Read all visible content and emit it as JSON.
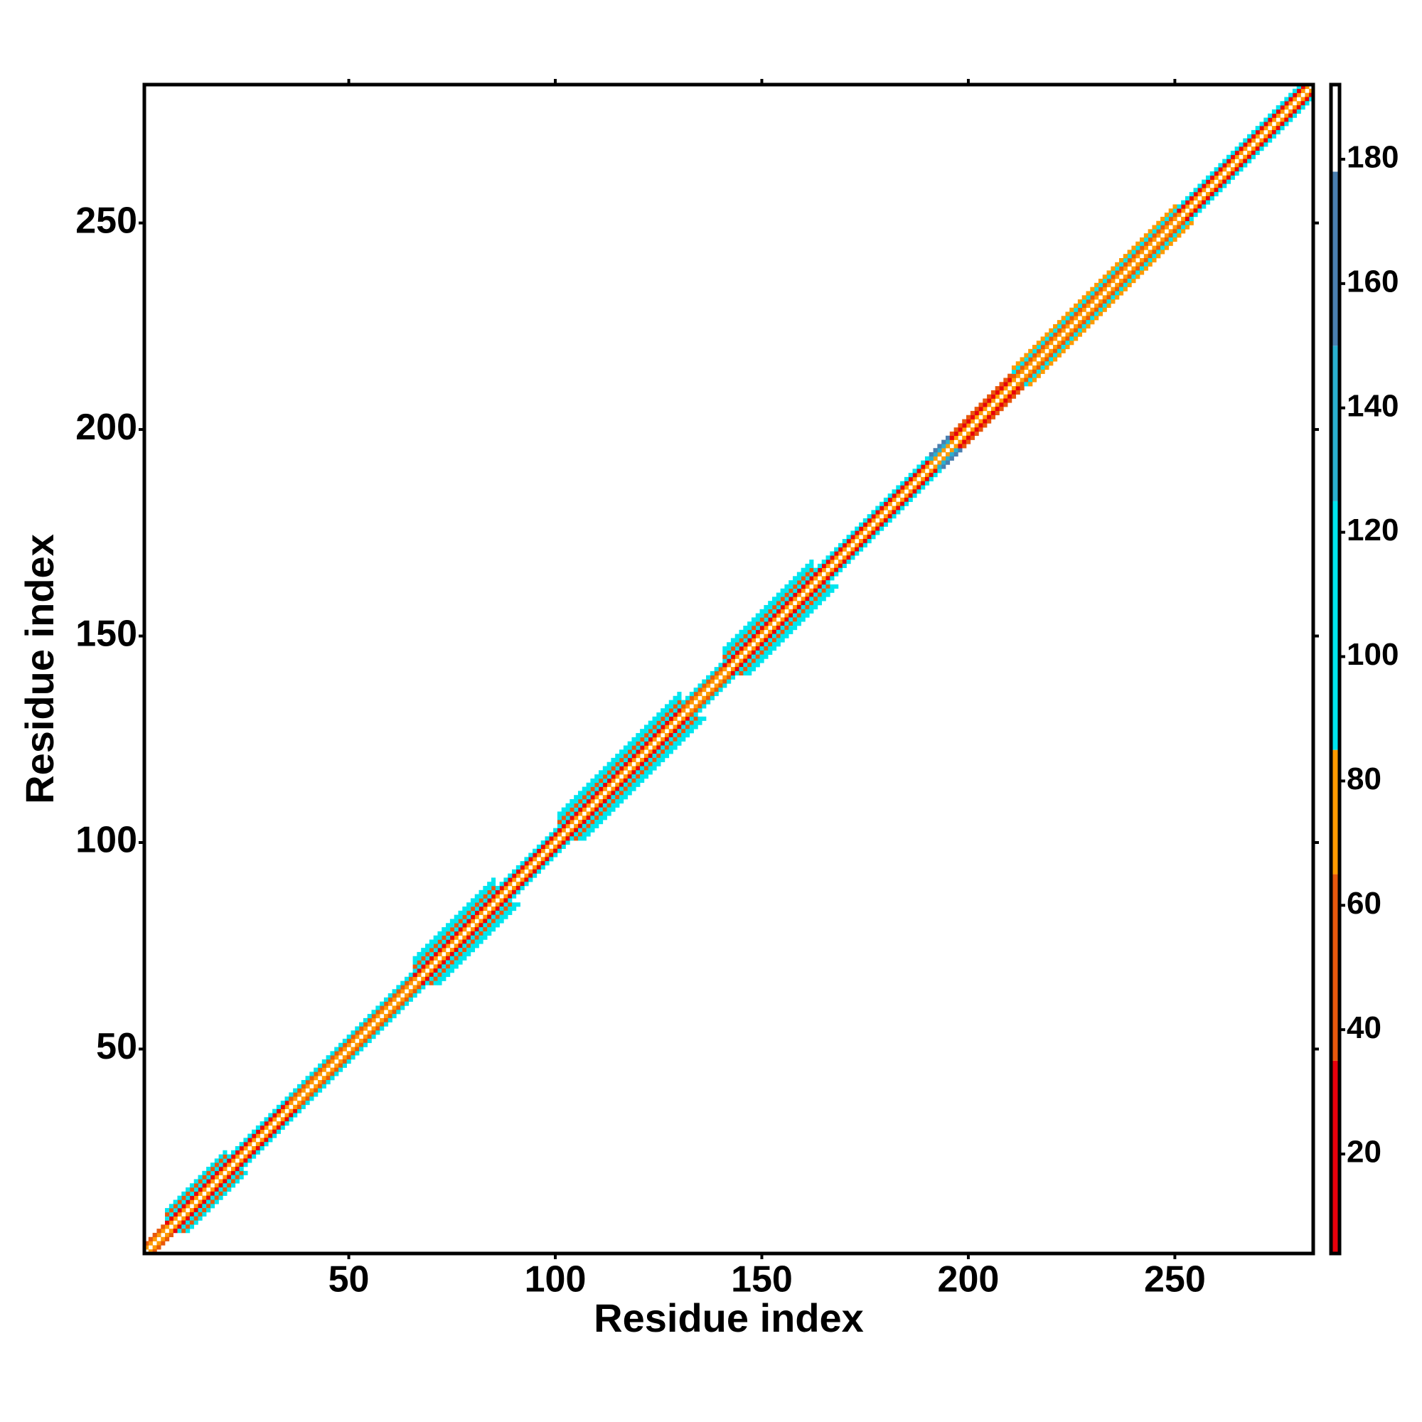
{
  "chart_data": {
    "type": "heatmap",
    "x_label": "Residue index",
    "y_label": "Residue index",
    "xlim": [
      0.5,
      283.5
    ],
    "ylim": [
      0.5,
      283.5
    ],
    "xticks": [
      50,
      100,
      150,
      200,
      250
    ],
    "yticks": [
      50,
      100,
      150,
      200,
      250
    ],
    "clim": [
      4,
      192
    ],
    "cticks": [
      20,
      40,
      60,
      80,
      100,
      120,
      140,
      160,
      180
    ],
    "colormap": [
      {
        "value": 4,
        "color": "#e8000b"
      },
      {
        "value": 35,
        "color": "#e8580c"
      },
      {
        "value": 65,
        "color": "#ff9a00"
      },
      {
        "value": 85,
        "color": "#00e5ee"
      },
      {
        "value": 125,
        "color": "#2ab0d0"
      },
      {
        "value": 150,
        "color": "#4a7fb0"
      },
      {
        "value": 178,
        "color": "#ffffff"
      }
    ],
    "bands": [
      {
        "start": 1,
        "end": 5,
        "values": [
          75,
          40
        ]
      },
      {
        "start": 6,
        "end": 20,
        "values": [
          80,
          30,
          100,
          60,
          95
        ]
      },
      {
        "start": 21,
        "end": 35,
        "values": [
          78,
          20,
          90
        ]
      },
      {
        "start": 36,
        "end": 65,
        "values": [
          75,
          50,
          100
        ]
      },
      {
        "start": 66,
        "end": 85,
        "values": [
          80,
          30,
          100,
          60,
          95,
          110
        ]
      },
      {
        "start": 86,
        "end": 100,
        "values": [
          75,
          20,
          95
        ]
      },
      {
        "start": 101,
        "end": 130,
        "values": [
          80,
          30,
          100,
          60,
          95,
          110
        ]
      },
      {
        "start": 131,
        "end": 140,
        "values": [
          75,
          40,
          90
        ]
      },
      {
        "start": 141,
        "end": 162,
        "values": [
          80,
          30,
          100,
          60,
          95,
          110
        ]
      },
      {
        "start": 163,
        "end": 190,
        "values": [
          70,
          15,
          95
        ]
      },
      {
        "start": 191,
        "end": 195,
        "values": [
          80,
          140,
          150
        ]
      },
      {
        "start": 196,
        "end": 210,
        "values": [
          75,
          15,
          60
        ]
      },
      {
        "start": 211,
        "end": 250,
        "values": [
          80,
          40,
          100,
          70
        ]
      },
      {
        "start": 251,
        "end": 283,
        "values": [
          75,
          25,
          95
        ]
      }
    ]
  }
}
